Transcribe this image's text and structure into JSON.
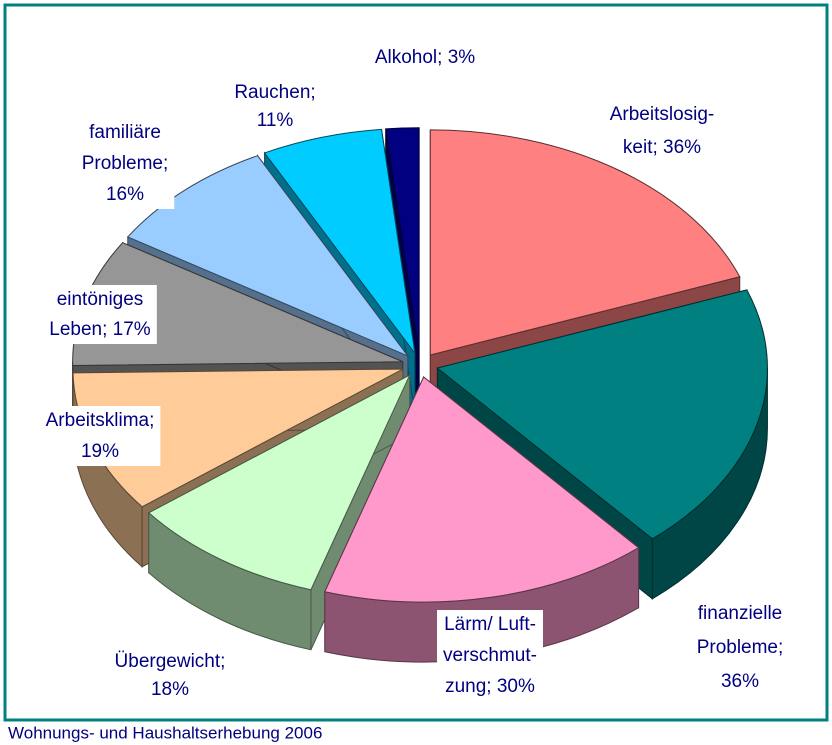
{
  "chart_data": {
    "type": "pie3d",
    "categories": [
      "Arbeitslosigkeit",
      "finanzielle Probleme",
      "Lärm/ Luftverschmutzung",
      "Übergewicht",
      "Arbeitsklima",
      "eintöniges Leben",
      "familiäre Probleme",
      "Rauchen",
      "Alkohol"
    ],
    "values": [
      36,
      36,
      30,
      18,
      19,
      17,
      16,
      11,
      3
    ],
    "value_labels": [
      [
        "Arbeitslosig-",
        "keit; 36%"
      ],
      [
        "finanzielle",
        "Probleme;",
        "36%"
      ],
      [
        "Lärm/ Luft-",
        "verschmut-",
        "zung; 30%"
      ],
      [
        "Übergewicht;",
        "18%"
      ],
      [
        "Arbeitsklima;",
        "19%"
      ],
      [
        "eintöniges",
        "Leben; 17%"
      ],
      [
        "familiäre",
        "Probleme;",
        "16%"
      ],
      [
        "Rauchen;",
        "11%"
      ],
      [
        "Alkohol; 3%"
      ]
    ],
    "colors": [
      "#ff8080",
      "#008080",
      "#ff99cc",
      "#ccffcc",
      "#ffcc99",
      "#969696",
      "#99ccff",
      "#00ccff",
      "#000080"
    ],
    "source": "Wohnungs- und Haushaltserhebung 2006"
  }
}
